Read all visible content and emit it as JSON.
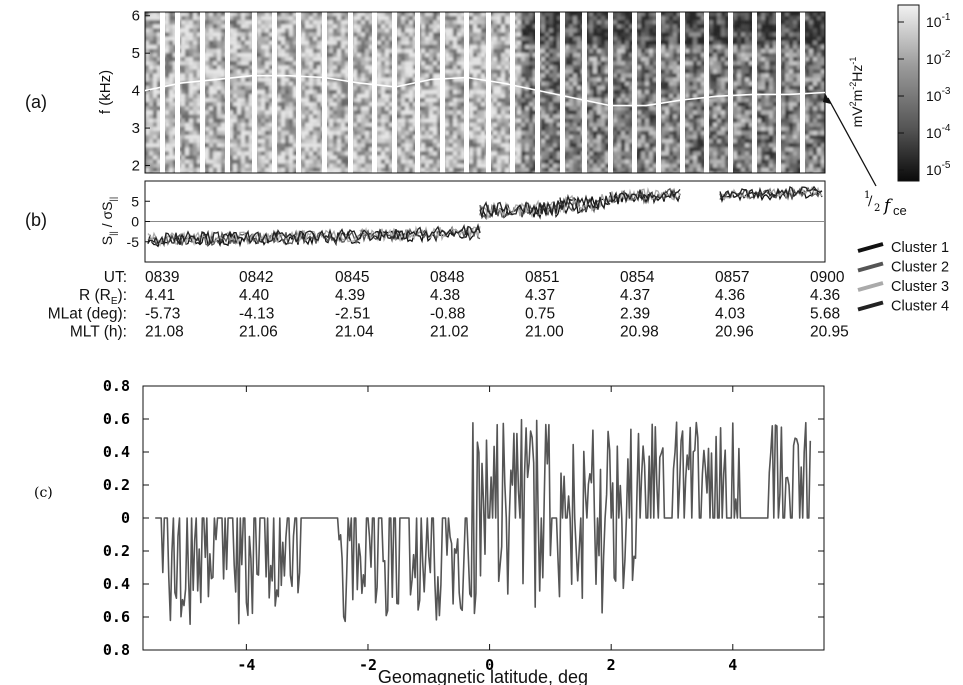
{
  "panel_labels": {
    "a": "(a)",
    "b": "(b)",
    "c": "(c)"
  },
  "colors": {
    "cluster1": "#111111",
    "cluster2": "#555555",
    "cluster3": "#aaaaaa",
    "cluster4": "#222222",
    "plot_c": "#555555"
  },
  "chart_data": [
    {
      "type": "heatmap",
      "panel": "(a)",
      "ylabel": "f (kHz)",
      "yticks": [
        "2",
        "3",
        "4",
        "5",
        "6"
      ],
      "ylim": [
        1.8,
        6.1
      ],
      "colorbar": {
        "label": "mV²m⁻²Hz⁻¹",
        "label_parts": {
          "base1": "mV",
          "sup1": "2",
          "base2": "m",
          "sup2": "-2",
          "base3": "Hz",
          "sup3": "-1"
        },
        "ticks": [
          {
            "base": "10",
            "exp": "-1"
          },
          {
            "base": "10",
            "exp": "-2"
          },
          {
            "base": "10",
            "exp": "-3"
          },
          {
            "base": "10",
            "exp": "-4"
          },
          {
            "base": "10",
            "exp": "-5"
          }
        ],
        "scale": "log"
      },
      "annotation": {
        "frac_num": "1",
        "frac_den": "2",
        "symbol": "f",
        "sub": "ce"
      },
      "half_fce_line_khz": [
        4.0,
        4.2,
        4.3,
        4.4,
        4.4,
        4.35,
        4.2,
        4.1,
        4.3,
        4.35,
        4.2,
        4.0,
        3.8,
        3.6,
        3.6,
        3.75,
        3.85,
        3.9,
        3.9,
        3.95
      ]
    },
    {
      "type": "line",
      "panel": "(b)",
      "ylabel": "S|| / σS||",
      "ylabel_parts": {
        "S": "S",
        "par": "||",
        "sep": " / σS",
        "par2": "||"
      },
      "yticks": [
        "5",
        "0",
        "-5"
      ],
      "ylim": [
        -10,
        10
      ],
      "legend_position": "right",
      "series": [
        {
          "name": "Cluster 1",
          "color": "#111111"
        },
        {
          "name": "Cluster 2",
          "color": "#555555"
        },
        {
          "name": "Cluster 3",
          "color": "#aaaaaa"
        },
        {
          "name": "Cluster 4",
          "color": "#222222"
        }
      ]
    },
    {
      "type": "line",
      "panel": "(c)",
      "xlabel": "Geomagnetic latitude, deg",
      "xticks": [
        "-4",
        "-2",
        "0",
        "2",
        "4"
      ],
      "xlim": [
        -5.7,
        5.5
      ],
      "yticks": [
        "0.8",
        "0.6",
        "0.4",
        "0.2",
        "0",
        "0.2",
        "0.4",
        "0.6",
        "0.8"
      ],
      "ylim": [
        -0.8,
        0.8
      ],
      "color": "#555555"
    }
  ],
  "ephemeris": {
    "rows": [
      {
        "label": "UT:",
        "values": [
          "0839",
          "0842",
          "0845",
          "0848",
          "0851",
          "0854",
          "0857",
          "0900"
        ]
      },
      {
        "label": "R (RE):",
        "label_parts": {
          "a": "R (R",
          "sub": "E",
          "b": "):"
        },
        "values": [
          "4.41",
          "4.40",
          "4.39",
          "4.38",
          "4.37",
          "4.37",
          "4.36",
          "4.36"
        ]
      },
      {
        "label": "MLat (deg):",
        "values": [
          "-5.73",
          "-4.13",
          "-2.51",
          "-0.88",
          "0.75",
          "2.39",
          "4.03",
          "5.68"
        ]
      },
      {
        "label": "MLT (h):",
        "values": [
          "21.08",
          "21.06",
          "21.04",
          "21.02",
          "21.00",
          "20.98",
          "20.96",
          "20.95"
        ]
      }
    ]
  }
}
